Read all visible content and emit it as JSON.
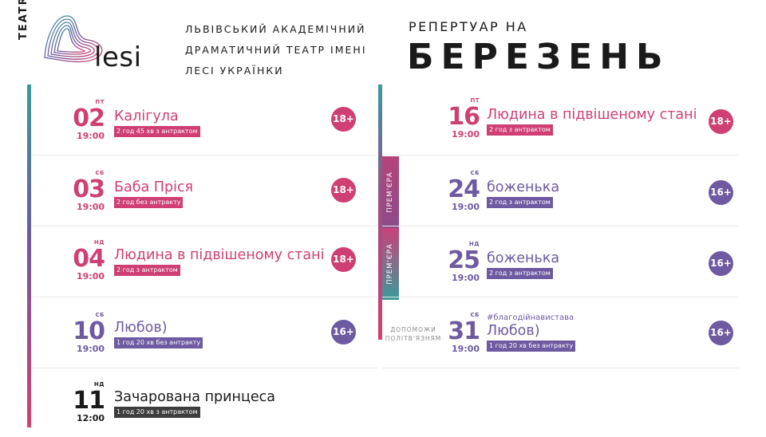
{
  "header": {
    "logo": {
      "teatr": "TEATR",
      "lesi": "lesi"
    },
    "theatre_name": [
      "ЛЬВІВСЬКИЙ АКАДЕМІЧНИЙ",
      "ДРАМАТИЧНИЙ ТЕАТР ІМЕНІ",
      "ЛЕСІ УКРАЇНКИ"
    ],
    "repertoire_label": "РЕПЕРТУАР НА",
    "month": "БЕРЕЗЕНЬ"
  },
  "colors": {
    "pink": "#cf3f73",
    "purple": "#6d5aa0",
    "teal": "#3a9a9a",
    "black": "#1a1a1a"
  },
  "left_column": [
    {
      "day": "ПТ",
      "date": "02",
      "time": "19:00",
      "title": "Калігула",
      "duration": "2 год 45 хв з антрактом",
      "age": "18+",
      "color": "pink"
    },
    {
      "day": "СБ",
      "date": "03",
      "time": "19:00",
      "title": "Баба Пріся",
      "duration": "2 год без антракту",
      "age": "18+",
      "color": "pink"
    },
    {
      "day": "НД",
      "date": "04",
      "time": "19:00",
      "title": "Людина в підвішеному стані",
      "duration": "2 год з антрактом",
      "age": "18+",
      "color": "pink"
    },
    {
      "day": "СБ",
      "date": "10",
      "time": "19:00",
      "title": "Любов)",
      "duration": "1 год 20 хв без антракту",
      "age": "16+",
      "color": "purple"
    },
    {
      "day": "НД",
      "date": "11",
      "time": "12:00",
      "title": "Зачарована принцеса",
      "duration": "1 год 20 хв з антрактом",
      "age": "",
      "color": "black"
    }
  ],
  "right_column": [
    {
      "day": "ПТ",
      "date": "16",
      "time": "19:00",
      "title": "Людина в підвішеному стані",
      "duration": "2 год з антрактом",
      "age": "18+",
      "color": "pink"
    },
    {
      "day": "СБ",
      "date": "24",
      "time": "19:00",
      "title": "боженька",
      "duration": "2 год з антрактом",
      "age": "16+",
      "color": "purple",
      "tag": "ПРЕМ'ЄРА"
    },
    {
      "day": "НД",
      "date": "25",
      "time": "19:00",
      "title": "боженька",
      "duration": "2 год з антрактом",
      "age": "16+",
      "color": "purple",
      "tag": "ПРЕМ'ЄРА"
    },
    {
      "day": "СБ",
      "date": "31",
      "time": "19:00",
      "hashtag": "#благодійнавистава",
      "title": "Любов)",
      "duration": "1 год 20 хв без антракту",
      "age": "16+",
      "color": "purple",
      "note": [
        "ДОПОМОЖИ",
        "ПОЛІТВ'ЯЗНЯМ"
      ]
    }
  ]
}
